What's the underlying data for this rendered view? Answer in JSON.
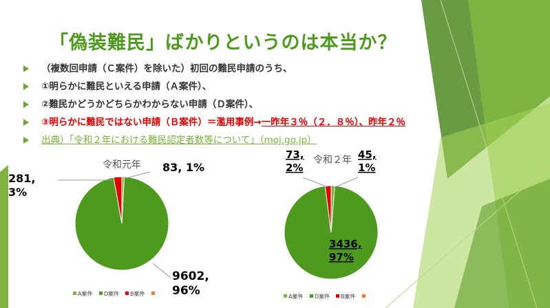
{
  "slide": {
    "title": "「偽装難民」ばかりというのは本当か？",
    "bullets": [
      {
        "text": "（複数回申請（Ｃ案件）を除いた）初回の難民申請のうち、",
        "style": "normal"
      },
      {
        "text": "①明らかに難民といえる申請（Ａ案件）、",
        "style": "normal"
      },
      {
        "text": "②難民かどうかどちらかわからない申請（Ｄ案件）、",
        "style": "normal"
      },
      {
        "text_plain": "③明らかに難民ではない申請（Ｂ案件）＝濫用事例→",
        "text_underline": "一昨年３％（２．８％）、昨年２％",
        "style": "red"
      },
      {
        "text": "出典）「令和２年における難民認定者数等について」（moj.go.jp）",
        "style": "link"
      }
    ]
  },
  "colors": {
    "accent_green": "#4e9a1e",
    "slice_A": "#7fb241",
    "slice_D": "#4e9a1e",
    "slice_B": "#e00000",
    "slice_C": "#ed7d31"
  },
  "chart_data": [
    {
      "type": "pie",
      "title": "令和元年",
      "categories": [
        "A案件",
        "D案件",
        "B案件"
      ],
      "values": [
        83,
        9602,
        281
      ],
      "data_labels": [
        {
          "line1": "83,",
          "line2": "1%"
        },
        {
          "line1": "9602,",
          "line2": "96%"
        },
        {
          "line1": "281,",
          "line2": "3%"
        }
      ],
      "legend": [
        "A案件",
        "D案件",
        "B案件",
        ""
      ],
      "legend_position": "bottom"
    },
    {
      "type": "pie",
      "title": "令和２年",
      "categories": [
        "A案件",
        "D案件",
        "B案件"
      ],
      "values": [
        45,
        3436,
        73
      ],
      "data_labels": [
        {
          "line1": "45,",
          "line2": "1%"
        },
        {
          "line1": "3436,",
          "line2": "97%"
        },
        {
          "line1": "73,",
          "line2": "2%"
        }
      ],
      "legend": [
        "A案件",
        "D案件",
        "B案件",
        ""
      ],
      "legend_position": "bottom"
    }
  ]
}
